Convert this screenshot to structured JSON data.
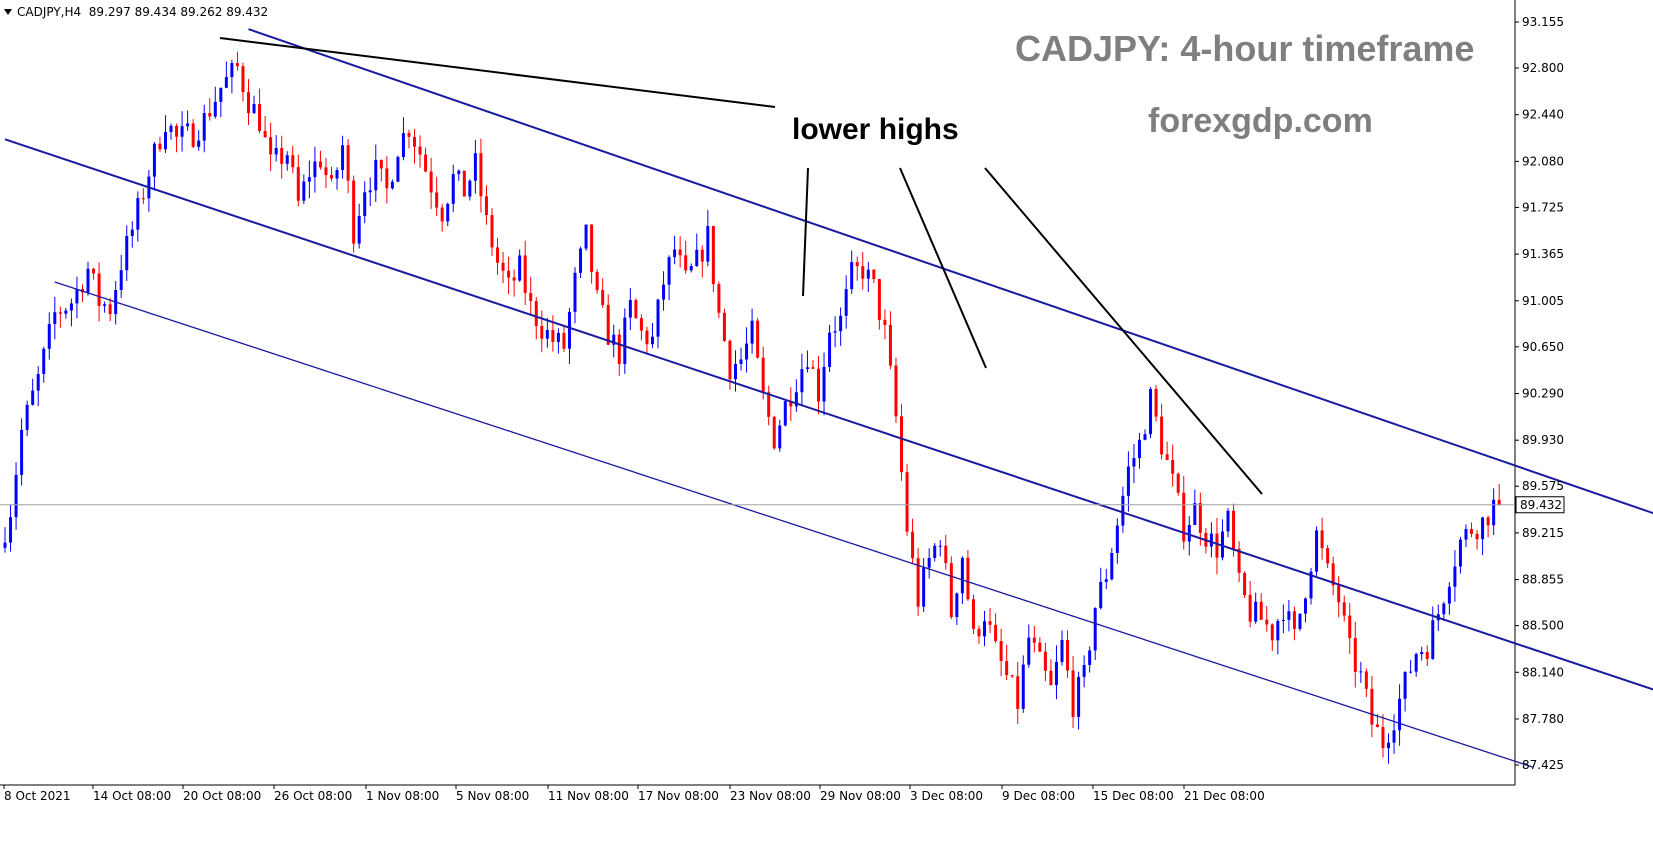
{
  "header": {
    "symbol": "CADJPY,H4",
    "ohlc": "89.297 89.434 89.262 89.432"
  },
  "overlay": {
    "title": "CADJPY: 4-hour timeframe",
    "site": "forexgdp.com",
    "annotation": "lower highs"
  },
  "colors": {
    "bull": "#0000ff",
    "bear": "#ff0000",
    "channel": "#1a1aa0",
    "annotation_line": "#000000",
    "current_line": "#a0a0a0"
  },
  "chart_data": {
    "type": "candlestick",
    "ylim": [
      87.24,
      93.34
    ],
    "yticks": [
      "93.155",
      "92.800",
      "92.440",
      "92.080",
      "91.725",
      "91.365",
      "91.005",
      "90.650",
      "90.290",
      "89.930",
      "89.575",
      "89.215",
      "88.855",
      "88.500",
      "88.140",
      "87.780",
      "87.425"
    ],
    "xticks": [
      "8 Oct 2021",
      "14 Oct 08:00",
      "20 Oct 08:00",
      "26 Oct 08:00",
      "1 Nov 08:00",
      "5 Nov 08:00",
      "11 Nov 08:00",
      "17 Nov 08:00",
      "23 Nov 08:00",
      "29 Nov 08:00",
      "3 Dec 08:00",
      "9 Dec 08:00",
      "15 Dec 08:00",
      "21 Dec 08:00"
    ],
    "current_price": 89.432,
    "current_price_label": "89.432",
    "path_points": [
      [
        0,
        89.1
      ],
      [
        2,
        89.4
      ],
      [
        4,
        90.0
      ],
      [
        7,
        90.4
      ],
      [
        10,
        90.9
      ],
      [
        13,
        91.0
      ],
      [
        16,
        91.25
      ],
      [
        18,
        91.0
      ],
      [
        20,
        90.95
      ],
      [
        22,
        91.3
      ],
      [
        24,
        91.55
      ],
      [
        27,
        92.0
      ],
      [
        30,
        92.4
      ],
      [
        32,
        92.25
      ],
      [
        35,
        92.3
      ],
      [
        37,
        92.4
      ],
      [
        40,
        92.65
      ],
      [
        43,
        92.8
      ],
      [
        45,
        92.55
      ],
      [
        47,
        92.4
      ],
      [
        49,
        92.05
      ],
      [
        52,
        92.15
      ],
      [
        54,
        91.75
      ],
      [
        56,
        92.0
      ],
      [
        58,
        92.1
      ],
      [
        60,
        91.85
      ],
      [
        62,
        92.2
      ],
      [
        64,
        91.55
      ],
      [
        66,
        91.9
      ],
      [
        68,
        92.0
      ],
      [
        70,
        91.85
      ],
      [
        72,
        92.2
      ],
      [
        74,
        92.35
      ],
      [
        76,
        92.15
      ],
      [
        78,
        91.9
      ],
      [
        80,
        91.7
      ],
      [
        82,
        91.95
      ],
      [
        84,
        91.85
      ],
      [
        86,
        92.05
      ],
      [
        88,
        91.6
      ],
      [
        90,
        91.3
      ],
      [
        92,
        91.1
      ],
      [
        94,
        91.25
      ],
      [
        96,
        90.95
      ],
      [
        98,
        90.8
      ],
      [
        100,
        90.7
      ],
      [
        102,
        90.65
      ],
      [
        104,
        91.15
      ],
      [
        106,
        91.5
      ],
      [
        108,
        91.0
      ],
      [
        110,
        90.75
      ],
      [
        112,
        90.6
      ],
      [
        114,
        90.95
      ],
      [
        116,
        90.75
      ],
      [
        118,
        90.7
      ],
      [
        120,
        91.15
      ],
      [
        122,
        91.4
      ],
      [
        124,
        91.15
      ],
      [
        126,
        91.3
      ],
      [
        128,
        91.5
      ],
      [
        130,
        90.9
      ],
      [
        132,
        90.5
      ],
      [
        134,
        90.55
      ],
      [
        136,
        90.75
      ],
      [
        138,
        90.25
      ],
      [
        140,
        89.95
      ],
      [
        142,
        90.2
      ],
      [
        144,
        90.4
      ],
      [
        146,
        90.6
      ],
      [
        148,
        90.3
      ],
      [
        150,
        90.8
      ],
      [
        152,
        90.85
      ],
      [
        154,
        91.2
      ],
      [
        156,
        91.25
      ],
      [
        158,
        91.1
      ],
      [
        160,
        90.75
      ],
      [
        162,
        90.1
      ],
      [
        164,
        89.25
      ],
      [
        166,
        88.7
      ],
      [
        168,
        89.0
      ],
      [
        170,
        89.2
      ],
      [
        172,
        88.6
      ],
      [
        174,
        89.05
      ],
      [
        176,
        88.4
      ],
      [
        178,
        88.6
      ],
      [
        180,
        88.3
      ],
      [
        182,
        88.1
      ],
      [
        184,
        87.9
      ],
      [
        186,
        88.4
      ],
      [
        188,
        88.2
      ],
      [
        190,
        88.0
      ],
      [
        192,
        88.35
      ],
      [
        194,
        87.9
      ],
      [
        196,
        88.1
      ],
      [
        198,
        88.65
      ],
      [
        200,
        88.9
      ],
      [
        202,
        89.3
      ],
      [
        204,
        89.7
      ],
      [
        206,
        89.9
      ],
      [
        208,
        90.25
      ],
      [
        210,
        89.9
      ],
      [
        212,
        89.6
      ],
      [
        214,
        89.25
      ],
      [
        216,
        89.4
      ],
      [
        218,
        89.2
      ],
      [
        220,
        89.1
      ],
      [
        222,
        89.3
      ],
      [
        224,
        88.8
      ],
      [
        226,
        88.6
      ],
      [
        228,
        88.55
      ],
      [
        230,
        88.45
      ],
      [
        232,
        88.65
      ],
      [
        234,
        88.4
      ],
      [
        236,
        88.8
      ],
      [
        238,
        89.2
      ],
      [
        240,
        88.9
      ],
      [
        242,
        88.7
      ],
      [
        244,
        88.3
      ],
      [
        246,
        88.1
      ],
      [
        248,
        87.75
      ],
      [
        250,
        87.6
      ],
      [
        252,
        87.8
      ],
      [
        254,
        88.05
      ],
      [
        256,
        88.3
      ],
      [
        258,
        88.35
      ],
      [
        260,
        88.6
      ],
      [
        262,
        88.9
      ],
      [
        264,
        89.15
      ],
      [
        266,
        89.25
      ],
      [
        268,
        89.3
      ],
      [
        270,
        89.43
      ]
    ],
    "channels": [
      {
        "name": "upper",
        "from": [
          44,
          93.1
        ],
        "to": [
          350,
          88.6
        ]
      },
      {
        "name": "middle",
        "from": [
          0,
          92.25
        ],
        "to": [
          344,
          87.35
        ]
      },
      {
        "name": "lower",
        "from": [
          9,
          91.15
        ],
        "to": [
          276,
          87.41
        ]
      }
    ]
  }
}
